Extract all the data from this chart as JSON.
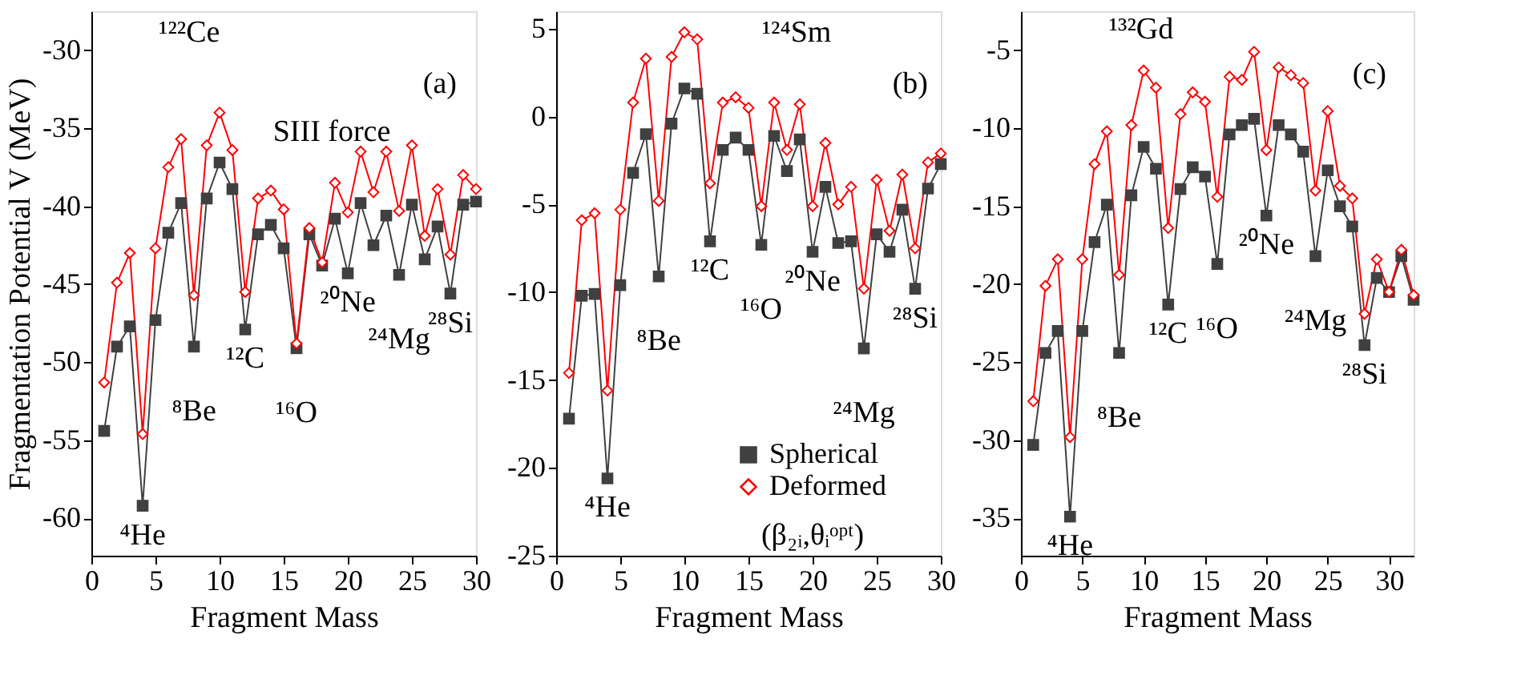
{
  "chart_data": [
    {
      "type": "line",
      "xlabel": "Fragment Mass",
      "ylabel": "Fragmentation Potential V (MeV)",
      "xlim": [
        0,
        30
      ],
      "ylim": [
        -62.4,
        -27.5
      ],
      "xticks": [
        0,
        5,
        10,
        15,
        20,
        25,
        30
      ],
      "yticks": [
        -60,
        -55,
        -50,
        -45,
        -40,
        -35,
        -30
      ],
      "legend": false,
      "x": [
        1,
        2,
        3,
        4,
        5,
        6,
        7,
        8,
        9,
        10,
        11,
        12,
        13,
        14,
        15,
        16,
        17,
        18,
        19,
        20,
        21,
        22,
        23,
        24,
        25,
        26,
        27,
        28,
        29,
        30
      ],
      "series": [
        {
          "color": "#404040",
          "marker": "square",
          "values": [
            -54.4,
            -49.0,
            -47.7,
            -59.2,
            -47.3,
            -41.7,
            -39.8,
            -49.0,
            -39.5,
            -37.2,
            -38.9,
            -47.9,
            -41.8,
            -41.2,
            -42.7,
            -49.1,
            -41.8,
            -43.8,
            -40.8,
            -44.3,
            -39.8,
            -42.5,
            -40.6,
            -44.4,
            -39.9,
            -43.4,
            -41.3,
            -45.6,
            -39.9,
            -39.7
          ]
        },
        {
          "color": "#ff0000",
          "marker": "diamond",
          "values": [
            -51.3,
            -44.9,
            -43.0,
            -54.6,
            -42.7,
            -37.5,
            -35.7,
            -45.7,
            -36.1,
            -34.0,
            -36.4,
            -45.5,
            -39.5,
            -39.0,
            -40.2,
            -48.8,
            -41.4,
            -43.6,
            -38.5,
            -40.4,
            -36.5,
            -39.1,
            -36.5,
            -40.3,
            -36.1,
            -41.9,
            -38.9,
            -43.1,
            -38.0,
            -38.9
          ]
        }
      ],
      "annotations": [
        "¹²²Ce",
        "(a)",
        "SIII force",
        {
          "text": "⁴He",
          "x": 4,
          "y": -59.2
        },
        {
          "text": "⁸Be",
          "x": 8,
          "y": -49.0
        },
        {
          "text": "¹²C",
          "x": 12,
          "y": -47.9
        },
        {
          "text": "¹⁶O",
          "x": 16,
          "y": -49.1
        },
        {
          "text": "²⁰Ne",
          "x": 20,
          "y": -44.3
        },
        {
          "text": "²⁴Mg",
          "x": 24,
          "y": -44.4
        },
        {
          "text": "²⁸Si",
          "x": 28,
          "y": -45.6
        }
      ]
    },
    {
      "type": "line",
      "xlabel": "Fragment Mass",
      "xlim": [
        0,
        30
      ],
      "ylim": [
        -25,
        6
      ],
      "xticks": [
        0,
        5,
        10,
        15,
        20,
        25,
        30
      ],
      "yticks": [
        -25,
        -20,
        -15,
        -10,
        -5,
        0,
        5
      ],
      "legend": "bottom right",
      "x": [
        1,
        2,
        3,
        4,
        5,
        6,
        7,
        8,
        9,
        10,
        11,
        12,
        13,
        14,
        15,
        16,
        17,
        18,
        19,
        20,
        21,
        22,
        23,
        24,
        25,
        26,
        27,
        28,
        29,
        30
      ],
      "series": [
        {
          "name": "Spherical",
          "color": "#404040",
          "marker": "square",
          "values": [
            -17.2,
            -10.2,
            -10.1,
            -20.6,
            -9.6,
            -3.2,
            -1.0,
            -9.1,
            -0.4,
            1.6,
            1.3,
            -7.1,
            -1.9,
            -1.2,
            -1.9,
            -7.3,
            -1.1,
            -3.1,
            -1.3,
            -7.7,
            -4.0,
            -7.2,
            -7.1,
            -13.2,
            -6.7,
            -7.7,
            -5.3,
            -9.8,
            -4.1,
            -2.7
          ]
        },
        {
          "name": "Deformed",
          "color": "#ff0000",
          "marker": "diamond",
          "values": [
            -14.6,
            -5.9,
            -5.5,
            -15.6,
            -5.3,
            0.8,
            3.3,
            -4.8,
            3.4,
            4.8,
            4.4,
            -3.8,
            0.8,
            1.1,
            0.5,
            -5.1,
            0.8,
            -1.9,
            0.7,
            -5.1,
            -1.5,
            -5.0,
            -4.0,
            -9.8,
            -3.6,
            -6.5,
            -3.3,
            -7.5,
            -2.6,
            -2.1
          ]
        }
      ],
      "annotations": [
        "¹²⁴Sm",
        "(b)",
        "(β₂ᵢ,θᵢᵒᵖᵗ)",
        {
          "text": "⁴He",
          "x": 4,
          "y": -20.6
        },
        {
          "text": "⁸Be",
          "x": 8,
          "y": -9.1
        },
        {
          "text": "¹²C",
          "x": 12,
          "y": -7.1
        },
        {
          "text": "¹⁶O",
          "x": 16,
          "y": -7.3
        },
        {
          "text": "²⁰Ne",
          "x": 20,
          "y": -7.7
        },
        {
          "text": "²⁴Mg",
          "x": 24,
          "y": -13.2
        },
        {
          "text": "²⁸Si",
          "x": 28,
          "y": -9.8
        }
      ]
    },
    {
      "type": "line",
      "xlabel": "Fragment Mass",
      "xlim": [
        0,
        32
      ],
      "ylim": [
        -37.4,
        -2.5
      ],
      "xticks": [
        0,
        5,
        10,
        15,
        20,
        25,
        30
      ],
      "yticks": [
        -35,
        -30,
        -25,
        -20,
        -15,
        -10,
        -5
      ],
      "legend": false,
      "x": [
        1,
        2,
        3,
        4,
        5,
        6,
        7,
        8,
        9,
        10,
        11,
        12,
        13,
        14,
        15,
        16,
        17,
        18,
        19,
        20,
        21,
        22,
        23,
        24,
        25,
        26,
        27,
        28,
        29,
        30,
        31,
        32
      ],
      "series": [
        {
          "color": "#404040",
          "marker": "square",
          "values": [
            -30.3,
            -24.4,
            -23.0,
            -34.9,
            -23.0,
            -17.3,
            -14.9,
            -24.4,
            -14.3,
            -11.2,
            -12.6,
            -21.3,
            -13.9,
            -12.5,
            -13.1,
            -18.7,
            -10.4,
            -9.8,
            -9.4,
            -15.6,
            -9.8,
            -10.4,
            -11.5,
            -18.2,
            -12.7,
            -15.0,
            -16.3,
            -23.9,
            -19.6,
            -20.5,
            -18.2,
            -21.0
          ]
        },
        {
          "color": "#ff0000",
          "marker": "diamond",
          "values": [
            -27.5,
            -20.1,
            -18.4,
            -29.8,
            -18.4,
            -12.3,
            -10.2,
            -19.4,
            -9.8,
            -6.3,
            -7.4,
            -16.4,
            -9.1,
            -7.7,
            -8.3,
            -14.4,
            -6.7,
            -6.9,
            -5.1,
            -11.4,
            -6.1,
            -6.6,
            -7.1,
            -14.0,
            -8.9,
            -13.7,
            -14.5,
            -21.9,
            -18.4,
            -20.5,
            -17.8,
            -20.7
          ]
        }
      ],
      "annotations": [
        "¹³²Gd",
        "(c)",
        {
          "text": "⁴He",
          "x": 4,
          "y": -34.9
        },
        {
          "text": "⁸Be",
          "x": 8,
          "y": -24.4
        },
        {
          "text": "¹²C",
          "x": 12,
          "y": -21.3
        },
        {
          "text": "¹⁶O",
          "x": 16,
          "y": -18.7
        },
        {
          "text": "²⁰Ne",
          "x": 20,
          "y": -15.6
        },
        {
          "text": "²⁴Mg",
          "x": 24,
          "y": -18.2
        },
        {
          "text": "²⁸Si",
          "x": 28,
          "y": -23.9
        }
      ]
    }
  ]
}
